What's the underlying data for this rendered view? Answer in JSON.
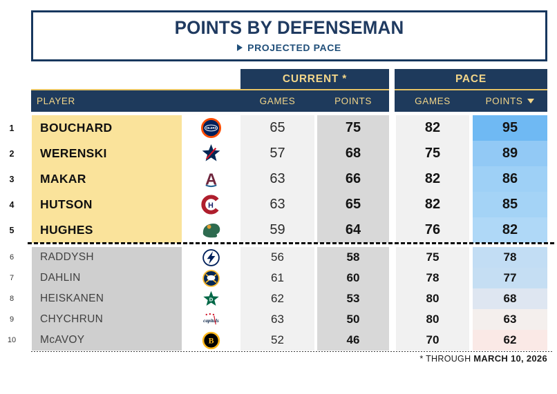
{
  "header": {
    "title": "POINTS BY DEFENSEMAN",
    "subtitle": "PROJECTED PACE"
  },
  "table": {
    "group_current": "CURRENT *",
    "group_pace": "PACE",
    "col_player": "PLAYER",
    "col_games_current": "GAMES",
    "col_points_current": "POINTS",
    "col_games_pace": "GAMES",
    "col_points_pace": "POINTS",
    "rows": [
      {
        "rank": "1",
        "player": "BOUCHARD",
        "team": "Edmonton Oilers",
        "team_code": "EDM",
        "current_games": "65",
        "current_points": "75",
        "pace_games": "82",
        "pace_points": "95",
        "pace_points_bg": "#6FB9F3",
        "tier": "top"
      },
      {
        "rank": "2",
        "player": "WERENSKI",
        "team": "Columbus Blue Jackets",
        "team_code": "CBJ",
        "current_games": "57",
        "current_points": "68",
        "pace_games": "75",
        "pace_points": "89",
        "pace_points_bg": "#92C9F5",
        "tier": "top"
      },
      {
        "rank": "3",
        "player": "MAKAR",
        "team": "Colorado Avalanche",
        "team_code": "COL",
        "current_games": "63",
        "current_points": "66",
        "pace_games": "82",
        "pace_points": "86",
        "pace_points_bg": "#9ED0F6",
        "tier": "top"
      },
      {
        "rank": "4",
        "player": "HUTSON",
        "team": "Montreal Canadiens",
        "team_code": "MTL",
        "current_games": "63",
        "current_points": "65",
        "pace_games": "82",
        "pace_points": "85",
        "pace_points_bg": "#A4D3F6",
        "tier": "top"
      },
      {
        "rank": "5",
        "player": "HUGHES",
        "team": "Minnesota Wild",
        "team_code": "MIN",
        "current_games": "59",
        "current_points": "64",
        "pace_games": "76",
        "pace_points": "82",
        "pace_points_bg": "#AFD8F7",
        "tier": "top"
      },
      {
        "rank": "6",
        "player": "RADDYSH",
        "team": "Tampa Bay Lightning",
        "team_code": "TBL",
        "current_games": "56",
        "current_points": "58",
        "pace_games": "75",
        "pace_points": "78",
        "pace_points_bg": "#C2DDF4",
        "tier": "bottom"
      },
      {
        "rank": "7",
        "player": "DAHLIN",
        "team": "Buffalo Sabres",
        "team_code": "BUF",
        "current_games": "61",
        "current_points": "60",
        "pace_games": "78",
        "pace_points": "77",
        "pace_points_bg": "#C5DEF3",
        "tier": "bottom"
      },
      {
        "rank": "8",
        "player": "HEISKANEN",
        "team": "Dallas Stars",
        "team_code": "DAL",
        "current_games": "62",
        "current_points": "53",
        "pace_games": "80",
        "pace_points": "68",
        "pace_points_bg": "#DEE6F1",
        "tier": "bottom"
      },
      {
        "rank": "9",
        "player": "CHYCHRUN",
        "team": "Washington Capitals",
        "team_code": "WSH",
        "current_games": "63",
        "current_points": "50",
        "pace_games": "80",
        "pace_points": "63",
        "pace_points_bg": "#F4EFED",
        "tier": "bottom"
      },
      {
        "rank": "10",
        "player": "McAVOY",
        "team": "Boston Bruins",
        "team_code": "BOS",
        "current_games": "52",
        "current_points": "46",
        "pace_games": "70",
        "pace_points": "62",
        "pace_points_bg": "#FAE9E6",
        "tier": "bottom"
      }
    ]
  },
  "footer": {
    "note_prefix": "* THROUGH ",
    "note_date": "MARCH 10, 2026"
  },
  "icons": {
    "subtitle_arrow": "right-triangle",
    "pace_points_sort": "down-triangle"
  },
  "colors": {
    "navy": "#1E3A5C",
    "title_border": "#17375E",
    "gold_text": "#F3D689",
    "gold_line": "#E9C565",
    "highlight_yellow": "#FAE39B",
    "name_gray": "#CFCFCF",
    "games_col_bg": "#F1F1F1",
    "points_col_bg": "#D8D8D8"
  },
  "logos": {
    "EDM": {
      "name": "oilers-logo-icon",
      "shape": "ring-disc",
      "fill": "#00205B",
      "ring": "#FF4C00",
      "label": "OILERS",
      "label_color": "#FFFFFF"
    },
    "CBJ": {
      "name": "blue-jackets-logo-icon",
      "shape": "star",
      "fill": "#002654",
      "accent": "#CE1126",
      "label": "",
      "label_color": "#FFFFFF"
    },
    "COL": {
      "name": "avalanche-logo-icon",
      "shape": "letter",
      "fill": "#6F263D",
      "accent": "#236192",
      "label": "A",
      "label_color": "#6F263D"
    },
    "MTL": {
      "name": "canadiens-logo-icon",
      "shape": "c-h",
      "fill": "#AF1E2D",
      "accent": "#192168",
      "label": "C",
      "label_color": "#AF1E2D"
    },
    "MIN": {
      "name": "wild-logo-icon",
      "shape": "blob",
      "fill": "#2E6B4F",
      "accent": "#E59E33",
      "label": "",
      "label_color": "#FFFFFF"
    },
    "TBL": {
      "name": "lightning-logo-icon",
      "shape": "bolt",
      "fill": "#FFFFFF",
      "ring": "#00205B",
      "accent": "#00205B",
      "label": "",
      "label_color": "#00205B"
    },
    "BUF": {
      "name": "sabres-logo-icon",
      "shape": "sabres",
      "fill": "#002654",
      "ring": "#FDBB2F",
      "accent": "#FDBB2F",
      "label": "",
      "label_color": "#FFFFFF"
    },
    "DAL": {
      "name": "stars-logo-icon",
      "shape": "star",
      "fill": "#006847",
      "accent": "#FFFFFF",
      "label": "D",
      "label_color": "#FFFFFF"
    },
    "WSH": {
      "name": "capitals-logo-icon",
      "shape": "script",
      "fill": "#041E42",
      "accent": "#CE1126",
      "label": "capitals",
      "label_color": "#041E42"
    },
    "BOS": {
      "name": "bruins-logo-icon",
      "shape": "ring-disc",
      "fill": "#000000",
      "ring": "#FFB81C",
      "label": "B",
      "label_color": "#FFB81C"
    }
  }
}
